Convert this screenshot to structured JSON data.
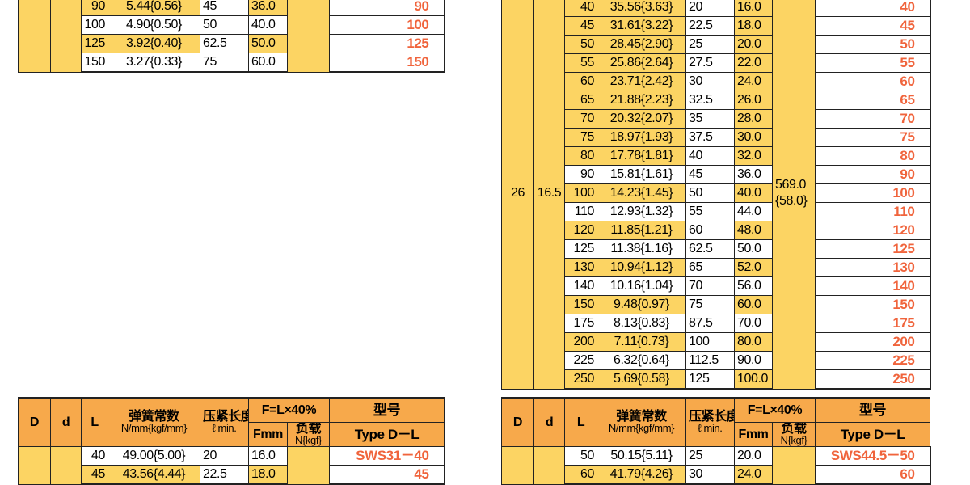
{
  "top_left": {
    "rows": [
      [
        "90",
        "5.44{0.56}",
        "45",
        "36.0",
        "90"
      ],
      [
        "100",
        "4.90{0.50}",
        "50",
        "40.0",
        "100"
      ],
      [
        "125",
        "3.92{0.40}",
        "62.5",
        "50.0",
        "125"
      ],
      [
        "150",
        "3.27{0.33}",
        "75",
        "60.0",
        "150"
      ]
    ]
  },
  "top_right": {
    "D": "26",
    "d": "16.5",
    "load": [
      "569.0",
      "{58.0}"
    ],
    "rows": [
      [
        "40",
        "35.56{3.63}",
        "20",
        "16.0",
        "40"
      ],
      [
        "45",
        "31.61{3.22}",
        "22.5",
        "18.0",
        "45"
      ],
      [
        "50",
        "28.45{2.90}",
        "25",
        "20.0",
        "50"
      ],
      [
        "55",
        "25.86{2.64}",
        "27.5",
        "22.0",
        "55"
      ],
      [
        "60",
        "23.71{2.42}",
        "30",
        "24.0",
        "60"
      ],
      [
        "65",
        "21.88{2.23}",
        "32.5",
        "26.0",
        "65"
      ],
      [
        "70",
        "20.32{2.07}",
        "35",
        "28.0",
        "70"
      ],
      [
        "75",
        "18.97{1.93}",
        "37.5",
        "30.0",
        "75"
      ],
      [
        "80",
        "17.78{1.81}",
        "40",
        "32.0",
        "80"
      ],
      [
        "90",
        "15.81{1.61}",
        "45",
        "36.0",
        "90"
      ],
      [
        "100",
        "14.23{1.45}",
        "50",
        "40.0",
        "100"
      ],
      [
        "110",
        "12.93{1.32}",
        "55",
        "44.0",
        "110"
      ],
      [
        "120",
        "11.85{1.21}",
        "60",
        "48.0",
        "120"
      ],
      [
        "125",
        "11.38{1.16}",
        "62.5",
        "50.0",
        "125"
      ],
      [
        "130",
        "10.94{1.12}",
        "65",
        "52.0",
        "130"
      ],
      [
        "140",
        "10.16{1.04}",
        "70",
        "56.0",
        "140"
      ],
      [
        "150",
        "9.48{0.97}",
        "75",
        "60.0",
        "150"
      ],
      [
        "175",
        "8.13{0.83}",
        "87.5",
        "70.0",
        "175"
      ],
      [
        "200",
        "7.11{0.73}",
        "100",
        "80.0",
        "200"
      ],
      [
        "225",
        "6.32{0.64}",
        "112.5",
        "90.0",
        "225"
      ],
      [
        "250",
        "5.69{0.58}",
        "125",
        "100.0",
        "250"
      ]
    ]
  },
  "bottom_left": {
    "header": {
      "D": "D",
      "d": "d",
      "L": "L",
      "spring": "弹簧常数",
      "spring_unit": "N/mm{kgf/mm}",
      "length": "压紧长度",
      "length_unit": "ℓ min.",
      "force": "F=L×40%",
      "fmm": "Fmm",
      "load": "负载",
      "load_unit": "N{kgf}",
      "model": "型号",
      "model_unit": "Type D－L"
    },
    "rows": [
      [
        "40",
        "49.00{5.00}",
        "20",
        "16.0",
        "SWS31－40"
      ],
      [
        "45",
        "43.56{4.44}",
        "22.5",
        "18.0",
        "45"
      ]
    ]
  },
  "bottom_right": {
    "header": {
      "D": "D",
      "d": "d",
      "L": "L",
      "spring": "弹簧常数",
      "spring_unit": "N/mm{kgf/mm}",
      "length": "压紧长度",
      "length_unit": "ℓ min.",
      "force": "F=L×40%",
      "fmm": "Fmm",
      "load": "负载",
      "load_unit": "N{kgf}",
      "model": "型号",
      "model_unit": "Type D－L"
    },
    "rows": [
      [
        "50",
        "50.15{5.11}",
        "25",
        "20.0",
        "SWS44.5－50"
      ],
      [
        "60",
        "41.79{4.26}",
        "30",
        "24.0",
        "60"
      ]
    ]
  }
}
